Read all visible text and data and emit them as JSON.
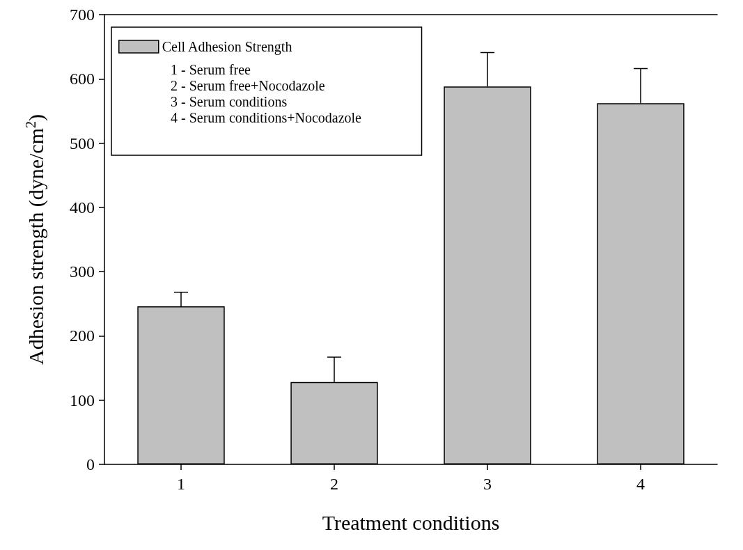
{
  "chart_data": {
    "type": "bar",
    "xlabel": "Treatment conditions",
    "ylabel": "Adhesion strength (dyne/cm$^{2}$)",
    "categories": [
      "1",
      "2",
      "3",
      "4"
    ],
    "series": [
      {
        "name": "Cell Adhesion Strength",
        "color": "#c0c0c0",
        "values": [
          246,
          128,
          588,
          562
        ],
        "errors": [
          [
            246,
            268
          ],
          [
            128,
            167
          ],
          [
            588,
            641
          ],
          [
            562,
            616
          ]
        ]
      }
    ],
    "ylim": [
      0,
      700
    ],
    "yticks": [
      0,
      100,
      200,
      300,
      400,
      500,
      600,
      700
    ],
    "grid": false,
    "legend": "top left",
    "annotations": [
      "1 - Serum free",
      "2 - Serum free+Nocodazole",
      "3 - Serum conditions",
      "4 - Serum conditions+Nocodazole"
    ]
  }
}
